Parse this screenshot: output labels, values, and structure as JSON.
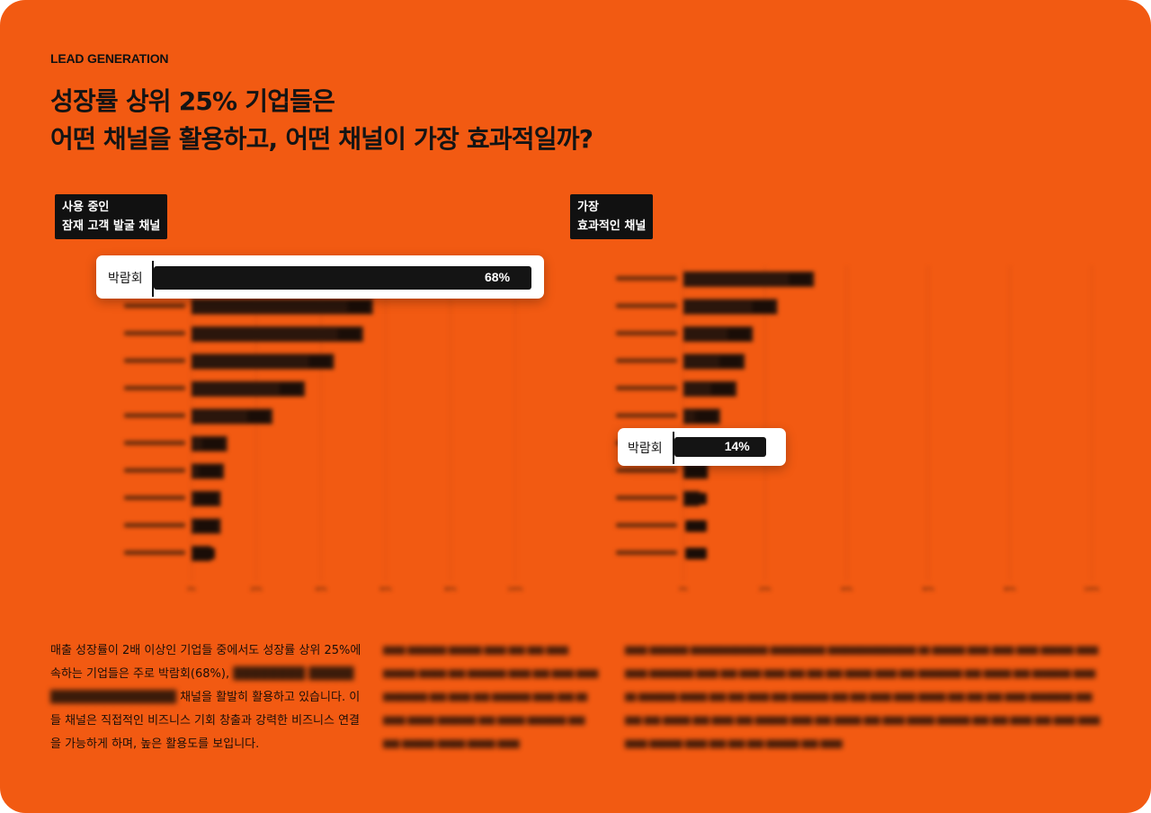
{
  "eyebrow": "LEAD GENERATION",
  "title": {
    "line1": "성장률 상위 25% 기업들은",
    "line2": "어떤 채널을 활용하고, 어떤 채널이 가장 효과적일까?"
  },
  "tag_left": {
    "line1": "사용 중인",
    "line2": "잠재 고객 발굴 채널"
  },
  "tag_right": {
    "line1": "가장",
    "line2": "효과적인 채널"
  },
  "highlight_left": {
    "label": "박람회",
    "value_text": "68%",
    "value": 68
  },
  "highlight_right": {
    "label": "박람회",
    "value_text": "14%",
    "value": 14
  },
  "chart_data": [
    {
      "type": "bar",
      "orientation": "horizontal",
      "title": "사용 중인 잠재 고객 발굴 채널",
      "highlighted_category": "박람회",
      "categories": [
        "박람회"
      ],
      "values": [
        68
      ],
      "unreadable_bar_values_estimated": [
        68,
        56,
        53,
        44,
        35,
        25,
        11,
        10,
        9,
        9,
        6
      ]
    },
    {
      "type": "bar",
      "orientation": "horizontal",
      "title": "가장 효과적인 채널",
      "highlighted_category": "박람회",
      "categories": [
        "박람회"
      ],
      "values": [
        14
      ],
      "unreadable_bar_values_estimated": [
        32,
        23,
        17,
        15,
        13,
        9,
        14,
        6,
        4,
        0,
        0
      ]
    }
  ],
  "paragraph": {
    "part1": "매출 성장률이 2배 이상인 기업들 중에서도 성장률 상위 25%에 속하는 기업들은 주로 박람회(68%), ",
    "part2": " 채널을 활발히 활용하고 있습니다. 이들 채널은 직접적인 비즈니스 기회 창출과 강력한 비즈니스 연결을 가능하게 하며, 높은 활용도를 보입니다."
  }
}
